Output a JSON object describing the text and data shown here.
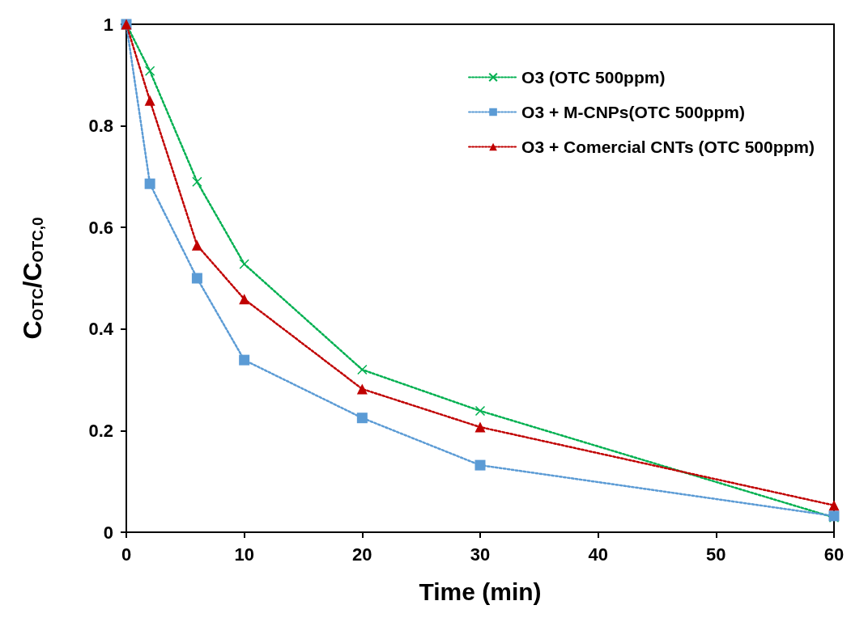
{
  "chart_data": {
    "type": "line",
    "xlabel": "Time (min)",
    "ylabel": "C$_{OTC}$/C$_{OTC,0}$",
    "x": [
      0,
      2,
      6,
      10,
      20,
      30,
      60
    ],
    "series": [
      {
        "name": "O3 (OTC 500ppm)",
        "color": "#00b050",
        "marker": "cross",
        "values": [
          1,
          0.908,
          0.69,
          0.528,
          0.32,
          0.239,
          0.029
        ]
      },
      {
        "name": "O3 + M-CNPs(OTC 500ppm)",
        "color": "#5b9bd5",
        "marker": "square",
        "values": [
          1,
          0.686,
          0.5,
          0.339,
          0.225,
          0.132,
          0.032
        ]
      },
      {
        "name": "O3 + Comercial CNTs (OTC 500ppm)",
        "color": "#c00000",
        "marker": "triangle",
        "values": [
          1,
          0.85,
          0.565,
          0.459,
          0.282,
          0.207,
          0.053
        ]
      }
    ],
    "xlim": [
      0,
      60
    ],
    "xticks": [
      0,
      10,
      20,
      30,
      40,
      50,
      60
    ],
    "ylim": [
      0,
      1
    ],
    "yticks": [
      0,
      0.2,
      0.4,
      0.6,
      0.8,
      1
    ],
    "grid": false,
    "legend": "top right",
    "line_style": "dotted"
  }
}
